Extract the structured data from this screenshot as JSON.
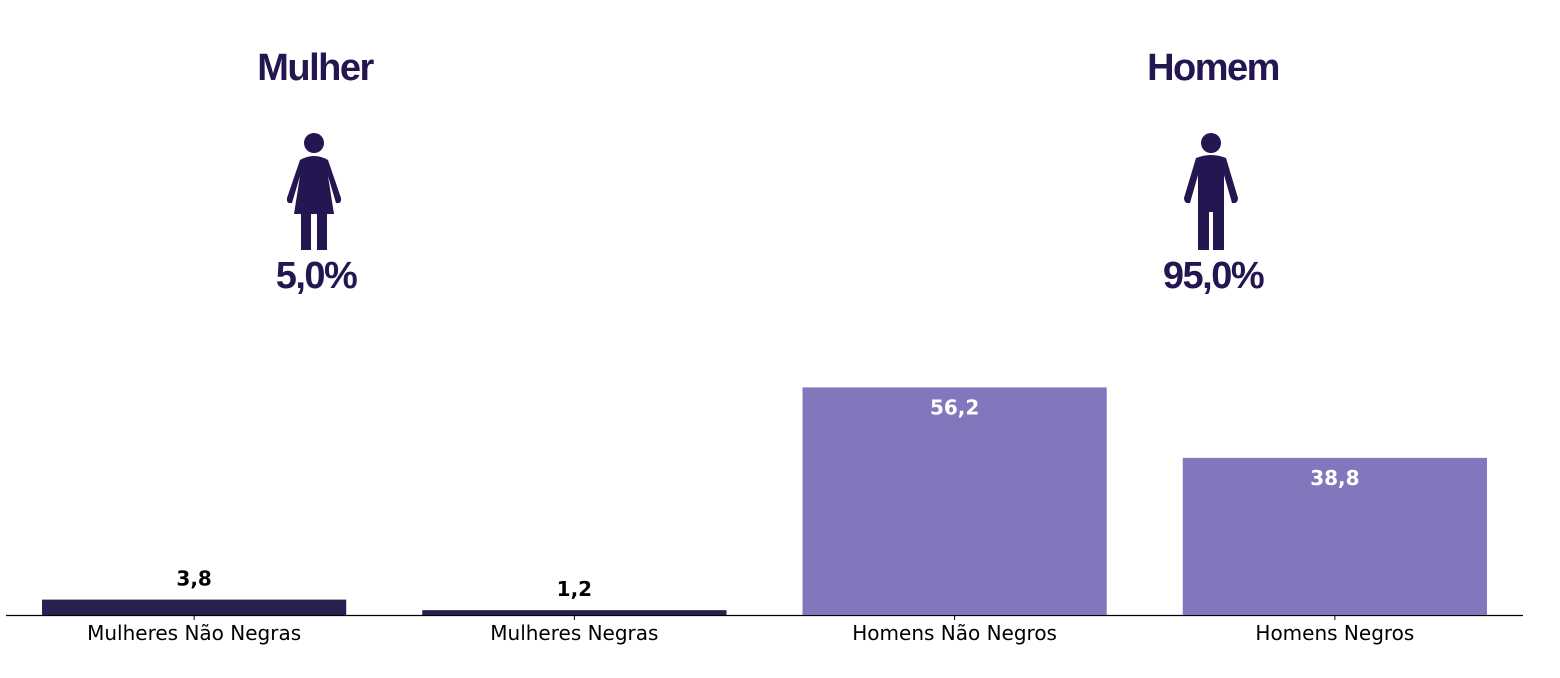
{
  "summary": [
    {
      "label": "Mulher",
      "share": "5,0%"
    },
    {
      "label": "Homem",
      "share": "95,0%"
    }
  ],
  "chart_data": {
    "type": "bar",
    "categories": [
      "Mulheres Não Negras",
      "Mulheres Negras",
      "Homens Não Negros",
      "Homens Negros"
    ],
    "values": [
      3.8,
      1.2,
      56.2,
      38.8
    ],
    "value_labels": [
      "3,8",
      "1,2",
      "56,2",
      "38,8"
    ],
    "colors": [
      "#2a1f4f",
      "#2a1f4f",
      "#8077bd",
      "#8077bd"
    ],
    "ylim": [
      0,
      60
    ]
  }
}
